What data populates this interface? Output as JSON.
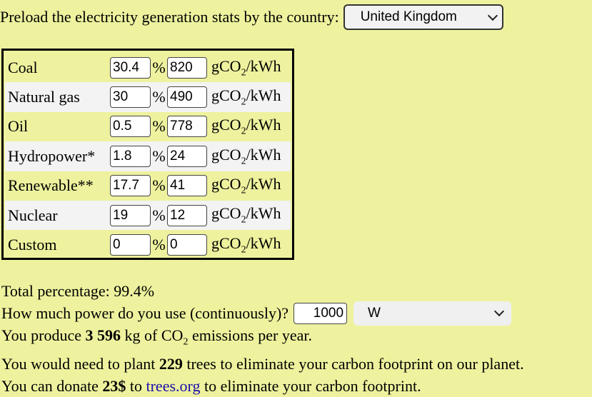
{
  "preload": {
    "label": "Preload the electricity generation stats by the country:",
    "selected_country": "United Kingdom"
  },
  "units": {
    "percent": "%",
    "co2_prefix": "gCO",
    "co2_sub": "2",
    "co2_suffix": "/kWh"
  },
  "sources": [
    {
      "label": "Coal",
      "percent": "30.4",
      "co2": "820"
    },
    {
      "label": "Natural gas",
      "percent": "30",
      "co2": "490"
    },
    {
      "label": "Oil",
      "percent": "0.5",
      "co2": "778"
    },
    {
      "label": "Hydropower*",
      "percent": "1.8",
      "co2": "24"
    },
    {
      "label": "Renewable**",
      "percent": "17.7",
      "co2": "41"
    },
    {
      "label": "Nuclear",
      "percent": "19",
      "co2": "12"
    },
    {
      "label": "Custom",
      "percent": "0",
      "co2": "0"
    }
  ],
  "summary": {
    "total_label": "Total percentage:",
    "total_value": "99.4%",
    "power_question": "How much power do you use (continuously)?",
    "power_value": "1000",
    "power_unit": "W",
    "produce_prefix": "You produce",
    "produce_value": "3 596",
    "produce_middle": "kg of CO",
    "produce_sub": "2",
    "produce_suffix": "emissions per year.",
    "trees_prefix": "You would need to plant",
    "trees_value": "229",
    "trees_suffix": "trees to eliminate your carbon footprint on our planet.",
    "donate_prefix": "You can donate",
    "donate_value": "23$",
    "donate_to": "to",
    "donate_link": "trees.org",
    "donate_suffix": "to eliminate your carbon footprint."
  }
}
